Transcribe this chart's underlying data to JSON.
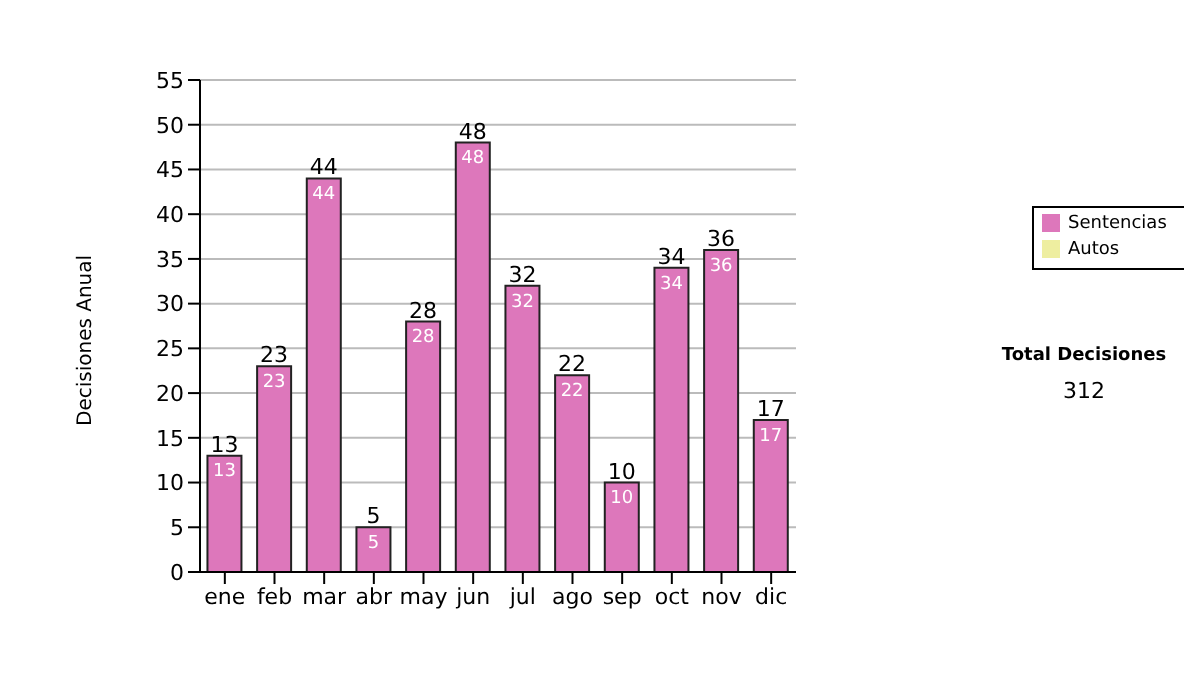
{
  "chart_data": {
    "type": "bar",
    "ylabel": "Decisiones Anual",
    "categories": [
      "ene",
      "feb",
      "mar",
      "abr",
      "may",
      "jun",
      "jul",
      "ago",
      "sep",
      "oct",
      "nov",
      "dic"
    ],
    "series": [
      {
        "name": "Sentencias",
        "color": "#dd77bb",
        "values": [
          13,
          23,
          44,
          5,
          28,
          48,
          32,
          22,
          10,
          34,
          36,
          17
        ]
      },
      {
        "name": "Autos",
        "color": "#eeeea0",
        "values": [
          null,
          null,
          null,
          null,
          null,
          null,
          null,
          null,
          null,
          null,
          null,
          null
        ]
      }
    ],
    "stacked": true,
    "data_labels": true,
    "totals": [
      "13",
      "23",
      "44",
      "5",
      "28",
      "48",
      "32",
      "22",
      "10",
      "34",
      "36",
      "17"
    ],
    "ylim": [
      0,
      55
    ],
    "yticks": [
      0,
      5,
      10,
      15,
      20,
      25,
      30,
      35,
      40,
      45,
      50,
      55
    ],
    "grid": "y",
    "legend": "right",
    "annotations": [
      "Total Decisiones",
      "312"
    ]
  }
}
